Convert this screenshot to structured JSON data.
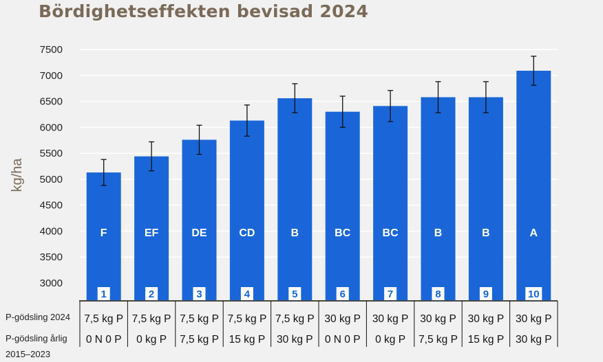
{
  "chart_data": {
    "type": "bar",
    "title": "Bördighetseffekten bevisad 2024",
    "ylabel": "kg/ha",
    "ylim": [
      2700,
      7500
    ],
    "yticks": [
      3000,
      3500,
      4000,
      4500,
      5000,
      5500,
      6000,
      6500,
      7000,
      7500
    ],
    "bar_color": "#1a66d9",
    "categories": [
      "1",
      "2",
      "3",
      "4",
      "5",
      "6",
      "7",
      "8",
      "9",
      "10"
    ],
    "values": [
      5130,
      5440,
      5760,
      6130,
      6560,
      6300,
      6410,
      6580,
      6580,
      7090
    ],
    "error": [
      250,
      280,
      280,
      300,
      280,
      300,
      300,
      300,
      300,
      280
    ],
    "grades": [
      "F",
      "EF",
      "DE",
      "CD",
      "B",
      "BC",
      "BC",
      "B",
      "B",
      "A"
    ],
    "table": {
      "row1_label": "P-gödsling 2024",
      "row1": [
        "7,5 kg P",
        "7,5 kg P",
        "7,5 kg P",
        "7,5 kg P",
        "7,5 kg P",
        "30 kg P",
        "30 kg P",
        "30 kg P",
        "30 kg P",
        "30 kg P"
      ],
      "row2_label_line1": "P-gödsling årlig",
      "row2_label_line2": "2015–2023",
      "row2": [
        "0 N 0 P",
        "0 kg P",
        "7,5 kg P",
        "15 kg P",
        "30 kg P",
        "0 N 0 P",
        "0 kg P",
        "7,5 kg P",
        "15 kg P",
        "30 kg P"
      ]
    }
  }
}
